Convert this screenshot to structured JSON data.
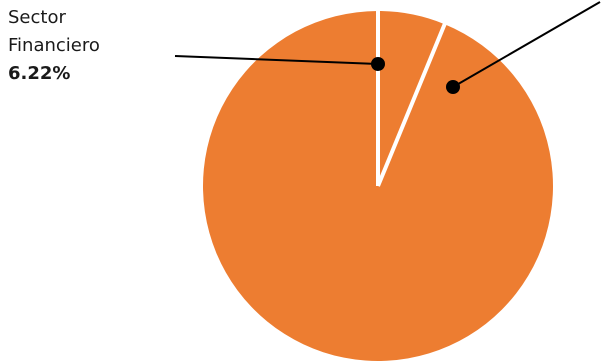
{
  "chart_data": {
    "type": "pie",
    "slices": [
      {
        "label": "Sector Financiero",
        "value": 6.22,
        "value_label": "6.22%",
        "color": "#ED7D31"
      },
      {
        "label": "",
        "value": 93.78,
        "value_label": "",
        "color": "#ED7D31"
      }
    ],
    "separator_color": "#ffffff",
    "leader_color": "#000000",
    "callout": {
      "line1": "Sector",
      "line2": "Financiero",
      "pct": "6.22%"
    }
  }
}
